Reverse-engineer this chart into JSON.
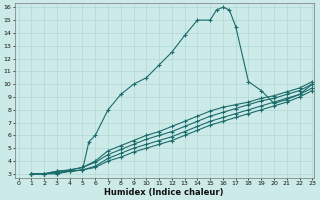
{
  "xlabel": "Humidex (Indice chaleur)",
  "bg_color": "#cceae8",
  "line_color": "#1a6b6b",
  "xlim": [
    0,
    23
  ],
  "ylim": [
    3,
    16
  ],
  "xticks": [
    0,
    1,
    2,
    3,
    4,
    5,
    6,
    7,
    8,
    9,
    10,
    11,
    12,
    13,
    14,
    15,
    16,
    17,
    18,
    19,
    20,
    21,
    22,
    23
  ],
  "yticks": [
    3,
    4,
    5,
    6,
    7,
    8,
    9,
    10,
    11,
    12,
    13,
    14,
    15,
    16
  ],
  "curves": [
    {
      "x": [
        1,
        2,
        3,
        4,
        5,
        5.5,
        6,
        7,
        8,
        9,
        10,
        11,
        12,
        13,
        14,
        15,
        15.5,
        16,
        16.5,
        17,
        18,
        19,
        20,
        21,
        22,
        23
      ],
      "y": [
        3,
        3,
        3,
        3.2,
        3.3,
        5.5,
        6,
        8,
        9.2,
        10,
        10.5,
        11.5,
        12.5,
        13.8,
        15,
        15,
        15.8,
        16,
        15.8,
        14.5,
        10.2,
        9.5,
        8.5,
        8.8,
        9.2,
        10
      ]
    },
    {
      "x": [
        1,
        2,
        3,
        4,
        5,
        6,
        7,
        8,
        9,
        10,
        11,
        12,
        13,
        14,
        15,
        16,
        17,
        18,
        19,
        20,
        21,
        22,
        23
      ],
      "y": [
        3,
        3,
        3.1,
        3.2,
        3.3,
        3.5,
        4.0,
        4.3,
        4.7,
        5.0,
        5.3,
        5.6,
        6.0,
        6.4,
        6.8,
        7.1,
        7.4,
        7.7,
        8.0,
        8.3,
        8.6,
        9.0,
        9.5
      ]
    },
    {
      "x": [
        1,
        2,
        3,
        4,
        5,
        6,
        7,
        8,
        9,
        10,
        11,
        12,
        13,
        14,
        15,
        16,
        17,
        18,
        19,
        20,
        21,
        22,
        23
      ],
      "y": [
        3,
        3,
        3.1,
        3.2,
        3.3,
        3.6,
        4.2,
        4.6,
        5.0,
        5.3,
        5.6,
        5.9,
        6.3,
        6.7,
        7.1,
        7.4,
        7.7,
        8.0,
        8.3,
        8.6,
        8.9,
        9.2,
        9.7
      ]
    },
    {
      "x": [
        1,
        2,
        3,
        4,
        5,
        6,
        7,
        8,
        9,
        10,
        11,
        12,
        13,
        14,
        15,
        16,
        17,
        18,
        19,
        20,
        21,
        22,
        23
      ],
      "y": [
        3,
        3,
        3.2,
        3.3,
        3.5,
        3.9,
        4.5,
        4.9,
        5.3,
        5.7,
        6.0,
        6.3,
        6.7,
        7.1,
        7.5,
        7.8,
        8.1,
        8.4,
        8.7,
        8.9,
        9.2,
        9.5,
        10.0
      ]
    },
    {
      "x": [
        1,
        2,
        3,
        4,
        5,
        6,
        7,
        8,
        9,
        10,
        11,
        12,
        13,
        14,
        15,
        16,
        17,
        18,
        19,
        20,
        21,
        22,
        23
      ],
      "y": [
        3,
        3,
        3.2,
        3.3,
        3.5,
        4.0,
        4.8,
        5.2,
        5.6,
        6.0,
        6.3,
        6.7,
        7.1,
        7.5,
        7.9,
        8.2,
        8.4,
        8.6,
        8.9,
        9.1,
        9.4,
        9.7,
        10.2
      ]
    }
  ]
}
